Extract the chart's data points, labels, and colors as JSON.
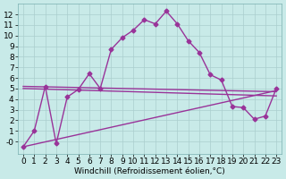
{
  "title": "",
  "xlabel": "Windchill (Refroidissement éolien,°C)",
  "ylabel": "",
  "background_color": "#c8eae8",
  "grid_color": "#aacece",
  "line_color": "#993399",
  "x_data": [
    0,
    1,
    2,
    3,
    4,
    5,
    6,
    7,
    8,
    9,
    10,
    11,
    12,
    13,
    14,
    15,
    16,
    17,
    18,
    19,
    20,
    21,
    22,
    23
  ],
  "main_series": [
    -0.5,
    1.0,
    5.2,
    -0.2,
    4.2,
    4.9,
    6.4,
    5.0,
    8.7,
    9.8,
    10.5,
    11.5,
    11.1,
    12.3,
    11.1,
    9.5,
    8.4,
    6.3,
    5.8,
    3.3,
    3.2,
    2.1,
    2.4,
    5.0
  ],
  "trend_lines": [
    {
      "x0": 0,
      "y0": 5.2,
      "x1": 23,
      "y1": 4.7
    },
    {
      "x0": 0,
      "y0": 5.0,
      "x1": 23,
      "y1": 4.3
    },
    {
      "x0": 0,
      "y0": -0.5,
      "x1": 23,
      "y1": 4.8
    }
  ],
  "ylim": [
    -1.2,
    13.0
  ],
  "xlim": [
    -0.5,
    23.5
  ],
  "yticks": [
    0,
    1,
    2,
    3,
    4,
    5,
    6,
    7,
    8,
    9,
    10,
    11,
    12
  ],
  "xticks": [
    0,
    1,
    2,
    3,
    4,
    5,
    6,
    7,
    8,
    9,
    10,
    11,
    12,
    13,
    14,
    15,
    16,
    17,
    18,
    19,
    20,
    21,
    22,
    23
  ],
  "font_size": 6.5,
  "marker": "D",
  "marker_size": 2.5,
  "line_width": 1.0
}
